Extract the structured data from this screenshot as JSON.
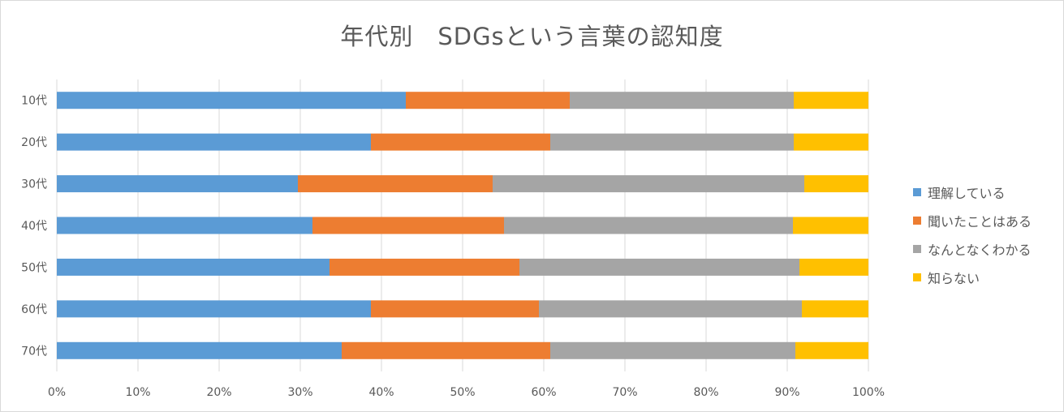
{
  "chart_data": {
    "type": "bar",
    "orientation": "horizontal",
    "stacked": "percent",
    "title": "年代別　SDGsという言葉の認知度",
    "categories": [
      "10代",
      "20代",
      "30代",
      "40代",
      "50代",
      "60代",
      "70代"
    ],
    "series": [
      {
        "name": "理解している",
        "color": "#5b9bd5",
        "values": [
          43.0,
          38.7,
          29.7,
          31.5,
          33.6,
          38.7,
          35.1
        ]
      },
      {
        "name": "聞いたことはある",
        "color": "#ed7d31",
        "values": [
          20.2,
          22.1,
          24.0,
          23.6,
          23.4,
          20.7,
          25.7
        ]
      },
      {
        "name": "なんとなくわかる",
        "color": "#a5a5a5",
        "values": [
          27.6,
          30.0,
          38.4,
          35.6,
          34.5,
          32.4,
          30.2
        ]
      },
      {
        "name": "知らない",
        "color": "#ffc000",
        "values": [
          9.2,
          9.2,
          7.9,
          9.3,
          8.5,
          8.2,
          9.0
        ]
      }
    ],
    "x_ticks": [
      "0%",
      "10%",
      "20%",
      "30%",
      "40%",
      "50%",
      "60%",
      "70%",
      "80%",
      "90%",
      "100%"
    ],
    "xlim": [
      0,
      100
    ],
    "grid": "vertical",
    "legend_position": "right"
  }
}
